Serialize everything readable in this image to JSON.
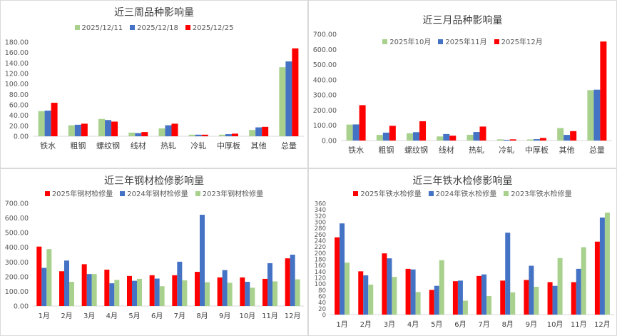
{
  "chart_data": [
    {
      "type": "bar",
      "title": "近三周品种影响量",
      "categories": [
        "铁水",
        "粗钢",
        "螺纹钢",
        "线材",
        "热轧",
        "冷轧",
        "中厚板",
        "其他",
        "总量"
      ],
      "series": [
        {
          "name": "2025/12/11",
          "color": "#a9d18e",
          "values": [
            48,
            21,
            33,
            7,
            15,
            3,
            3,
            12,
            132
          ]
        },
        {
          "name": "2025/12/18",
          "color": "#4472c4",
          "values": [
            49,
            22,
            31,
            6,
            21,
            3,
            4,
            17,
            143
          ]
        },
        {
          "name": "2025/12/25",
          "color": "#ff0000",
          "values": [
            64,
            24,
            28,
            8,
            24,
            3,
            5,
            18,
            168
          ]
        }
      ],
      "ylim": [
        0,
        180
      ],
      "yticks": [
        "0.00",
        "20.00",
        "40.00",
        "60.00",
        "80.00",
        "100.00",
        "120.00",
        "140.00",
        "160.00",
        "180.00"
      ],
      "legend_position": "top"
    },
    {
      "type": "bar",
      "title": "近三月品种影响量",
      "categories": [
        "铁水",
        "粗钢",
        "螺纹钢",
        "线材",
        "热轧",
        "冷轧",
        "中厚板",
        "其他",
        "总量"
      ],
      "series": [
        {
          "name": "2025年10月",
          "color": "#a9d18e",
          "values": [
            105,
            37,
            48,
            27,
            38,
            8,
            7,
            82,
            332
          ]
        },
        {
          "name": "2025年11月",
          "color": "#4472c4",
          "values": [
            106,
            52,
            55,
            43,
            56,
            5,
            9,
            37,
            335
          ]
        },
        {
          "name": "2025年12月",
          "color": "#ff0000",
          "values": [
            233,
            97,
            127,
            32,
            92,
            8,
            17,
            62,
            652
          ]
        }
      ],
      "ylim": [
        0,
        700
      ],
      "yticks": [
        "0.00",
        "100.00",
        "200.00",
        "300.00",
        "400.00",
        "500.00",
        "600.00",
        "700.00"
      ],
      "legend_position": "top"
    },
    {
      "type": "bar",
      "title": "近三年钢材检修影响量",
      "categories": [
        "1月",
        "2月",
        "3月",
        "4月",
        "5月",
        "6月",
        "7月",
        "8月",
        "9月",
        "10月",
        "11月",
        "12月"
      ],
      "series": [
        {
          "name": "2025年钢材检修量",
          "color": "#ff0000",
          "values": [
            405,
            237,
            285,
            248,
            205,
            210,
            210,
            233,
            195,
            195,
            185,
            325
          ]
        },
        {
          "name": "2024年钢材检修量",
          "color": "#4472c4",
          "values": [
            260,
            310,
            218,
            155,
            172,
            187,
            302,
            622,
            245,
            165,
            292,
            350
          ]
        },
        {
          "name": "2023年钢材检修量",
          "color": "#a9d18e",
          "values": [
            388,
            165,
            218,
            178,
            185,
            135,
            175,
            162,
            158,
            125,
            168,
            182
          ]
        }
      ],
      "ylim": [
        0,
        700
      ],
      "yticks": [
        "0.00",
        "100.00",
        "200.00",
        "300.00",
        "400.00",
        "500.00",
        "600.00",
        "700.00"
      ],
      "legend_position": "top"
    },
    {
      "type": "bar",
      "title": "近三年铁水检修影响量",
      "categories": [
        "1月",
        "2月",
        "3月",
        "4月",
        "5月",
        "6月",
        "7月",
        "8月",
        "9月",
        "10月",
        "11月",
        "12月"
      ],
      "series": [
        {
          "name": "2025年铁水检修量",
          "color": "#ff0000",
          "values": [
            250,
            140,
            198,
            148,
            80,
            108,
            125,
            110,
            112,
            105,
            105,
            236
          ]
        },
        {
          "name": "2024年铁水检修量",
          "color": "#4472c4",
          "values": [
            295,
            127,
            182,
            146,
            93,
            110,
            130,
            265,
            158,
            93,
            148,
            314
          ]
        },
        {
          "name": "2023年铁水检修量",
          "color": "#a9d18e",
          "values": [
            168,
            97,
            122,
            73,
            176,
            45,
            60,
            72,
            90,
            183,
            218,
            330
          ]
        }
      ],
      "ylim": [
        0,
        360
      ],
      "yticks": [
        "0",
        "20",
        "40",
        "60",
        "80",
        "100",
        "120",
        "140",
        "160",
        "180",
        "200",
        "220",
        "240",
        "260",
        "280",
        "300",
        "320",
        "340",
        "360"
      ],
      "legend_position": "top"
    }
  ]
}
